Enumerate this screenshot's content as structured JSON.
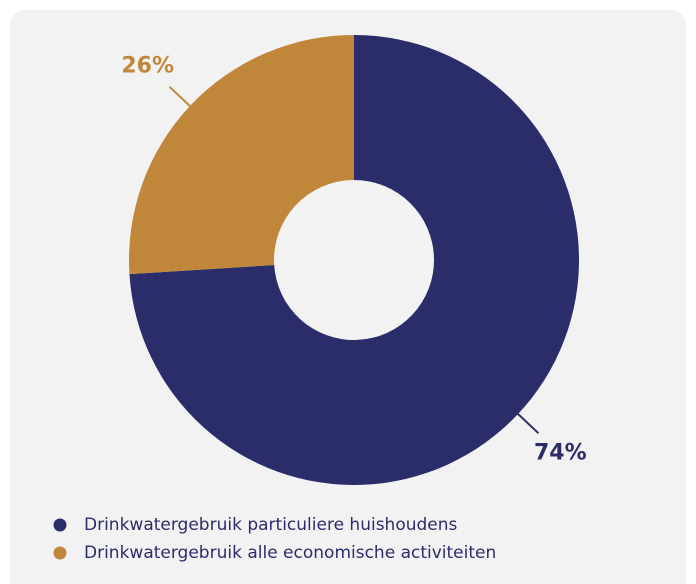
{
  "chart_data": {
    "type": "donut",
    "categories": [
      "Drinkwatergebruik particuliere huishoudens",
      "Drinkwatergebruik alle economische activiteiten"
    ],
    "values": [
      74,
      26
    ],
    "value_labels": [
      "74%",
      "26%"
    ],
    "colors": [
      "#2b2d6b",
      "#c0873a"
    ],
    "legend": "bottom-left"
  }
}
